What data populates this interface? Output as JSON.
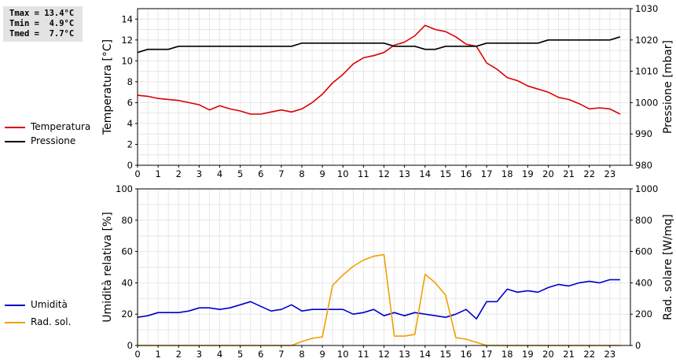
{
  "stats": {
    "tmax": "Tmax = 13.4°C",
    "tmin": "Tmin =  4.9°C",
    "tmed": "Tmed =  7.7°C"
  },
  "legend_top": [
    {
      "label": "Temperatura",
      "color": "#dd0000"
    },
    {
      "label": "Pressione",
      "color": "#000000"
    }
  ],
  "legend_bottom": [
    {
      "label": "Umidità",
      "color": "#0000cc"
    },
    {
      "label": "Rad. sol.",
      "color": "#f0a000"
    }
  ],
  "chart_data": [
    {
      "type": "line",
      "xlim": [
        0,
        24
      ],
      "xticks": [
        "0",
        "1",
        "2",
        "3",
        "4",
        "5",
        "6",
        "7",
        "8",
        "9",
        "10",
        "11",
        "12",
        "13",
        "14",
        "15",
        "16",
        "17",
        "18",
        "19",
        "20",
        "21",
        "22",
        "23"
      ],
      "ylabel": "Temperatura [°C]",
      "ylim": [
        0,
        15
      ],
      "yticks": [
        "0",
        "2",
        "4",
        "6",
        "8",
        "10",
        "12",
        "14"
      ],
      "y2label": "Pressione [mbar]",
      "y2lim": [
        980,
        1030
      ],
      "y2ticks": [
        "980",
        "990",
        "1000",
        "1010",
        "1020",
        "1030"
      ],
      "grid": true,
      "series": [
        {
          "name": "Temperatura",
          "axis": "left",
          "color": "#dd0000",
          "x": [
            0,
            0.5,
            1,
            1.5,
            2,
            2.5,
            3,
            3.5,
            4,
            4.5,
            5,
            5.5,
            6,
            6.5,
            7,
            7.5,
            8,
            8.5,
            9,
            9.5,
            10,
            10.5,
            11,
            11.5,
            12,
            12.5,
            13,
            13.5,
            14,
            14.5,
            15,
            15.5,
            16,
            16.5,
            17,
            17.5,
            18,
            18.5,
            19,
            19.5,
            20,
            20.5,
            21,
            21.5,
            22,
            22.5,
            23,
            23.5
          ],
          "y": [
            6.7,
            6.6,
            6.4,
            6.3,
            6.2,
            6.0,
            5.8,
            5.3,
            5.7,
            5.4,
            5.2,
            4.9,
            4.9,
            5.1,
            5.3,
            5.1,
            5.4,
            6.0,
            6.8,
            7.9,
            8.7,
            9.7,
            10.3,
            10.5,
            10.8,
            11.5,
            11.8,
            12.4,
            13.4,
            13.0,
            12.8,
            12.3,
            11.6,
            11.4,
            9.8,
            9.2,
            8.4,
            8.1,
            7.6,
            7.3,
            7.0,
            6.5,
            6.3,
            5.9,
            5.4,
            5.5,
            5.4,
            4.9
          ]
        },
        {
          "name": "Pressione",
          "axis": "right",
          "color": "#000000",
          "x": [
            0,
            0.5,
            1,
            1.5,
            2,
            2.5,
            3,
            3.5,
            4,
            4.5,
            5,
            5.5,
            6,
            6.5,
            7,
            7.5,
            8,
            8.5,
            9,
            9.5,
            10,
            10.5,
            11,
            11.5,
            12,
            12.5,
            13,
            13.5,
            14,
            14.5,
            15,
            15.5,
            16,
            16.5,
            17,
            17.5,
            18,
            18.5,
            19,
            19.5,
            20,
            20.5,
            21,
            21.5,
            22,
            22.5,
            23,
            23.5
          ],
          "y": [
            1016,
            1017,
            1017,
            1017,
            1018,
            1018,
            1018,
            1018,
            1018,
            1018,
            1018,
            1018,
            1018,
            1018,
            1018,
            1018,
            1019,
            1019,
            1019,
            1019,
            1019,
            1019,
            1019,
            1019,
            1019,
            1018,
            1018,
            1018,
            1017,
            1017,
            1018,
            1018,
            1018,
            1018,
            1019,
            1019,
            1019,
            1019,
            1019,
            1019,
            1020,
            1020,
            1020,
            1020,
            1020,
            1020,
            1020,
            1021
          ]
        }
      ]
    },
    {
      "type": "line",
      "xlim": [
        0,
        24
      ],
      "xticks": [
        "0",
        "1",
        "2",
        "3",
        "4",
        "5",
        "6",
        "7",
        "8",
        "9",
        "10",
        "11",
        "12",
        "13",
        "14",
        "15",
        "16",
        "17",
        "18",
        "19",
        "20",
        "21",
        "22",
        "23"
      ],
      "ylabel": "Umidità relativa [%]",
      "ylim": [
        0,
        100
      ],
      "yticks": [
        "0",
        "20",
        "40",
        "60",
        "80",
        "100"
      ],
      "y2label": "Rad. solare [W/mq]",
      "y2lim": [
        0,
        1000
      ],
      "y2ticks": [
        "0",
        "200",
        "400",
        "600",
        "800",
        "1000"
      ],
      "grid": true,
      "series": [
        {
          "name": "Umidità",
          "axis": "left",
          "color": "#0000cc",
          "x": [
            0,
            0.5,
            1,
            1.5,
            2,
            2.5,
            3,
            3.5,
            4,
            4.5,
            5,
            5.5,
            6,
            6.5,
            7,
            7.5,
            8,
            8.5,
            9,
            9.5,
            10,
            10.5,
            11,
            11.5,
            12,
            12.5,
            13,
            13.5,
            14,
            14.5,
            15,
            15.5,
            16,
            16.5,
            17,
            17.5,
            18,
            18.5,
            19,
            19.5,
            20,
            20.5,
            21,
            21.5,
            22,
            22.5,
            23,
            23.5
          ],
          "y": [
            18,
            19,
            21,
            21,
            21,
            22,
            24,
            24,
            23,
            24,
            26,
            28,
            25,
            22,
            23,
            26,
            22,
            23,
            23,
            23,
            23,
            20,
            21,
            23,
            19,
            21,
            19,
            21,
            20,
            19,
            18,
            20,
            23,
            17,
            28,
            28,
            36,
            34,
            35,
            34,
            37,
            39,
            38,
            40,
            41,
            40,
            42,
            42
          ]
        },
        {
          "name": "Rad. sol.",
          "axis": "right",
          "color": "#f0a000",
          "x": [
            0,
            0.5,
            1,
            1.5,
            2,
            2.5,
            3,
            3.5,
            4,
            4.5,
            5,
            5.5,
            6,
            6.5,
            7,
            7.5,
            8,
            8.5,
            9,
            9.5,
            10,
            10.5,
            11,
            11.5,
            12,
            12.5,
            13,
            13.5,
            14,
            14.5,
            15,
            15.5,
            16,
            16.5,
            17,
            17.5,
            18,
            18.5,
            19,
            19.5,
            20,
            20.5,
            21,
            21.5,
            22,
            22.5,
            23,
            23.5
          ],
          "y": [
            0,
            0,
            0,
            0,
            0,
            0,
            0,
            0,
            0,
            0,
            0,
            0,
            0,
            0,
            0,
            0,
            25,
            45,
            55,
            385,
            450,
            505,
            545,
            570,
            580,
            60,
            60,
            70,
            455,
            400,
            320,
            50,
            40,
            20,
            0,
            0,
            0,
            0,
            0,
            0,
            0,
            0,
            0,
            0,
            0,
            0,
            0,
            0
          ]
        }
      ]
    }
  ]
}
